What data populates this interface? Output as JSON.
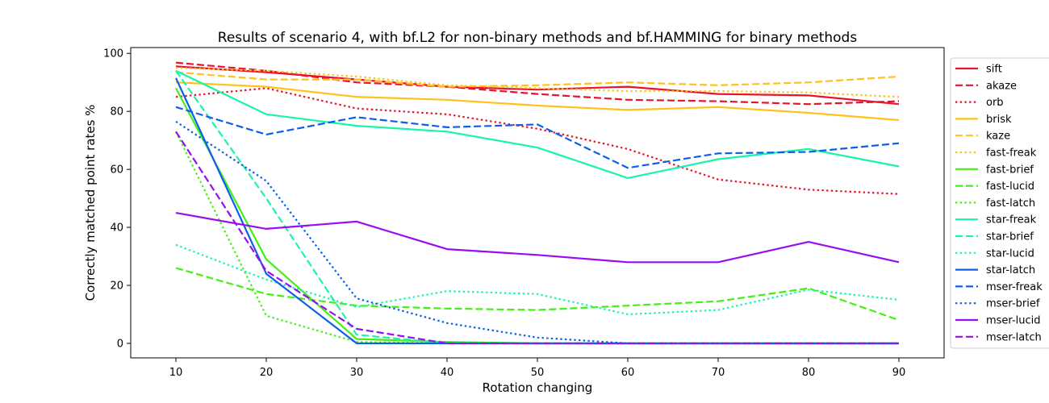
{
  "chart_data": {
    "type": "line",
    "title": "Results of scenario 4, with bf.L2 for non-binary methods and bf.HAMMING for binary methods",
    "xlabel": "Rotation changing",
    "ylabel": "Correctly matched point rates %",
    "x": [
      10,
      20,
      30,
      40,
      50,
      60,
      70,
      80,
      90
    ],
    "xlim": [
      5,
      95
    ],
    "ylim": [
      -5,
      102
    ],
    "xticks": [
      10,
      20,
      30,
      40,
      50,
      60,
      70,
      80,
      90
    ],
    "yticks": [
      0,
      20,
      40,
      60,
      80,
      100
    ],
    "grid": false,
    "legend_position": "right",
    "series": [
      {
        "name": "sift",
        "color": "#e8132f",
        "style": "solid",
        "values": [
          95.5,
          93.5,
          91.0,
          88.5,
          87.5,
          88.5,
          86.0,
          85.5,
          82.5
        ]
      },
      {
        "name": "akaze",
        "color": "#e8132f",
        "style": "dashed",
        "values": [
          96.8,
          94.0,
          90.0,
          88.5,
          86.0,
          84.0,
          83.5,
          82.5,
          83.5
        ]
      },
      {
        "name": "orb",
        "color": "#e8132f",
        "style": "dotted",
        "values": [
          85.0,
          88.0,
          81.0,
          79.0,
          74.0,
          67.0,
          56.5,
          53.0,
          51.5
        ]
      },
      {
        "name": "brisk",
        "color": "#ffc21a",
        "style": "solid",
        "values": [
          90.0,
          88.5,
          85.0,
          84.0,
          82.0,
          80.5,
          81.5,
          79.5,
          77.0
        ]
      },
      {
        "name": "kaze",
        "color": "#ffc21a",
        "style": "dashed",
        "values": [
          93.5,
          91.0,
          91.0,
          88.5,
          89.0,
          90.0,
          89.0,
          90.0,
          92.0
        ]
      },
      {
        "name": "fast-freak",
        "color": "#ffc21a",
        "style": "dotted",
        "values": [
          95.0,
          94.0,
          92.0,
          89.0,
          88.0,
          87.0,
          87.0,
          86.5,
          85.0
        ]
      },
      {
        "name": "fast-brief",
        "color": "#44f014",
        "style": "solid",
        "values": [
          88.0,
          29.0,
          1.5,
          0.5,
          0,
          0,
          0,
          0,
          0
        ]
      },
      {
        "name": "fast-lucid",
        "color": "#44f014",
        "style": "dashed",
        "values": [
          26.0,
          17.0,
          13.0,
          12.0,
          11.5,
          13.0,
          14.5,
          19.0,
          8.0
        ]
      },
      {
        "name": "fast-latch",
        "color": "#44f014",
        "style": "dotted",
        "values": [
          73.0,
          9.5,
          0.5,
          0,
          0,
          0,
          0,
          0,
          0
        ]
      },
      {
        "name": "star-freak",
        "color": "#19f5a8",
        "style": "solid",
        "values": [
          94.0,
          79.0,
          75.0,
          73.0,
          67.5,
          57.0,
          63.5,
          67.0,
          61.0
        ]
      },
      {
        "name": "star-brief",
        "color": "#19f5a8",
        "style": "dashed",
        "values": [
          94.0,
          50.0,
          3.0,
          0,
          0,
          0,
          0,
          0,
          0
        ]
      },
      {
        "name": "star-lucid",
        "color": "#19f5a8",
        "style": "dotted",
        "values": [
          34.0,
          22.0,
          12.5,
          18.0,
          17.0,
          10.0,
          11.5,
          18.5,
          15.0
        ]
      },
      {
        "name": "star-latch",
        "color": "#0d5fe8",
        "style": "solid",
        "values": [
          91.5,
          24.0,
          0,
          0,
          0,
          0,
          0,
          0,
          0
        ]
      },
      {
        "name": "mser-freak",
        "color": "#0d5fe8",
        "style": "dashed",
        "values": [
          81.5,
          72.0,
          78.0,
          74.5,
          75.5,
          60.5,
          65.5,
          66.0,
          69.0
        ]
      },
      {
        "name": "mser-brief",
        "color": "#0d5fe8",
        "style": "dotted",
        "values": [
          76.5,
          56.0,
          15.5,
          7.0,
          2.0,
          0,
          0,
          0,
          0
        ]
      },
      {
        "name": "mser-lucid",
        "color": "#9a0df0",
        "style": "solid",
        "values": [
          45.0,
          39.5,
          42.0,
          32.5,
          30.5,
          28.0,
          28.0,
          35.0,
          28.0
        ]
      },
      {
        "name": "mser-latch",
        "color": "#9a0df0",
        "style": "dashed",
        "values": [
          73.0,
          25.0,
          5.0,
          0,
          0,
          0,
          0,
          0,
          0
        ]
      }
    ]
  }
}
